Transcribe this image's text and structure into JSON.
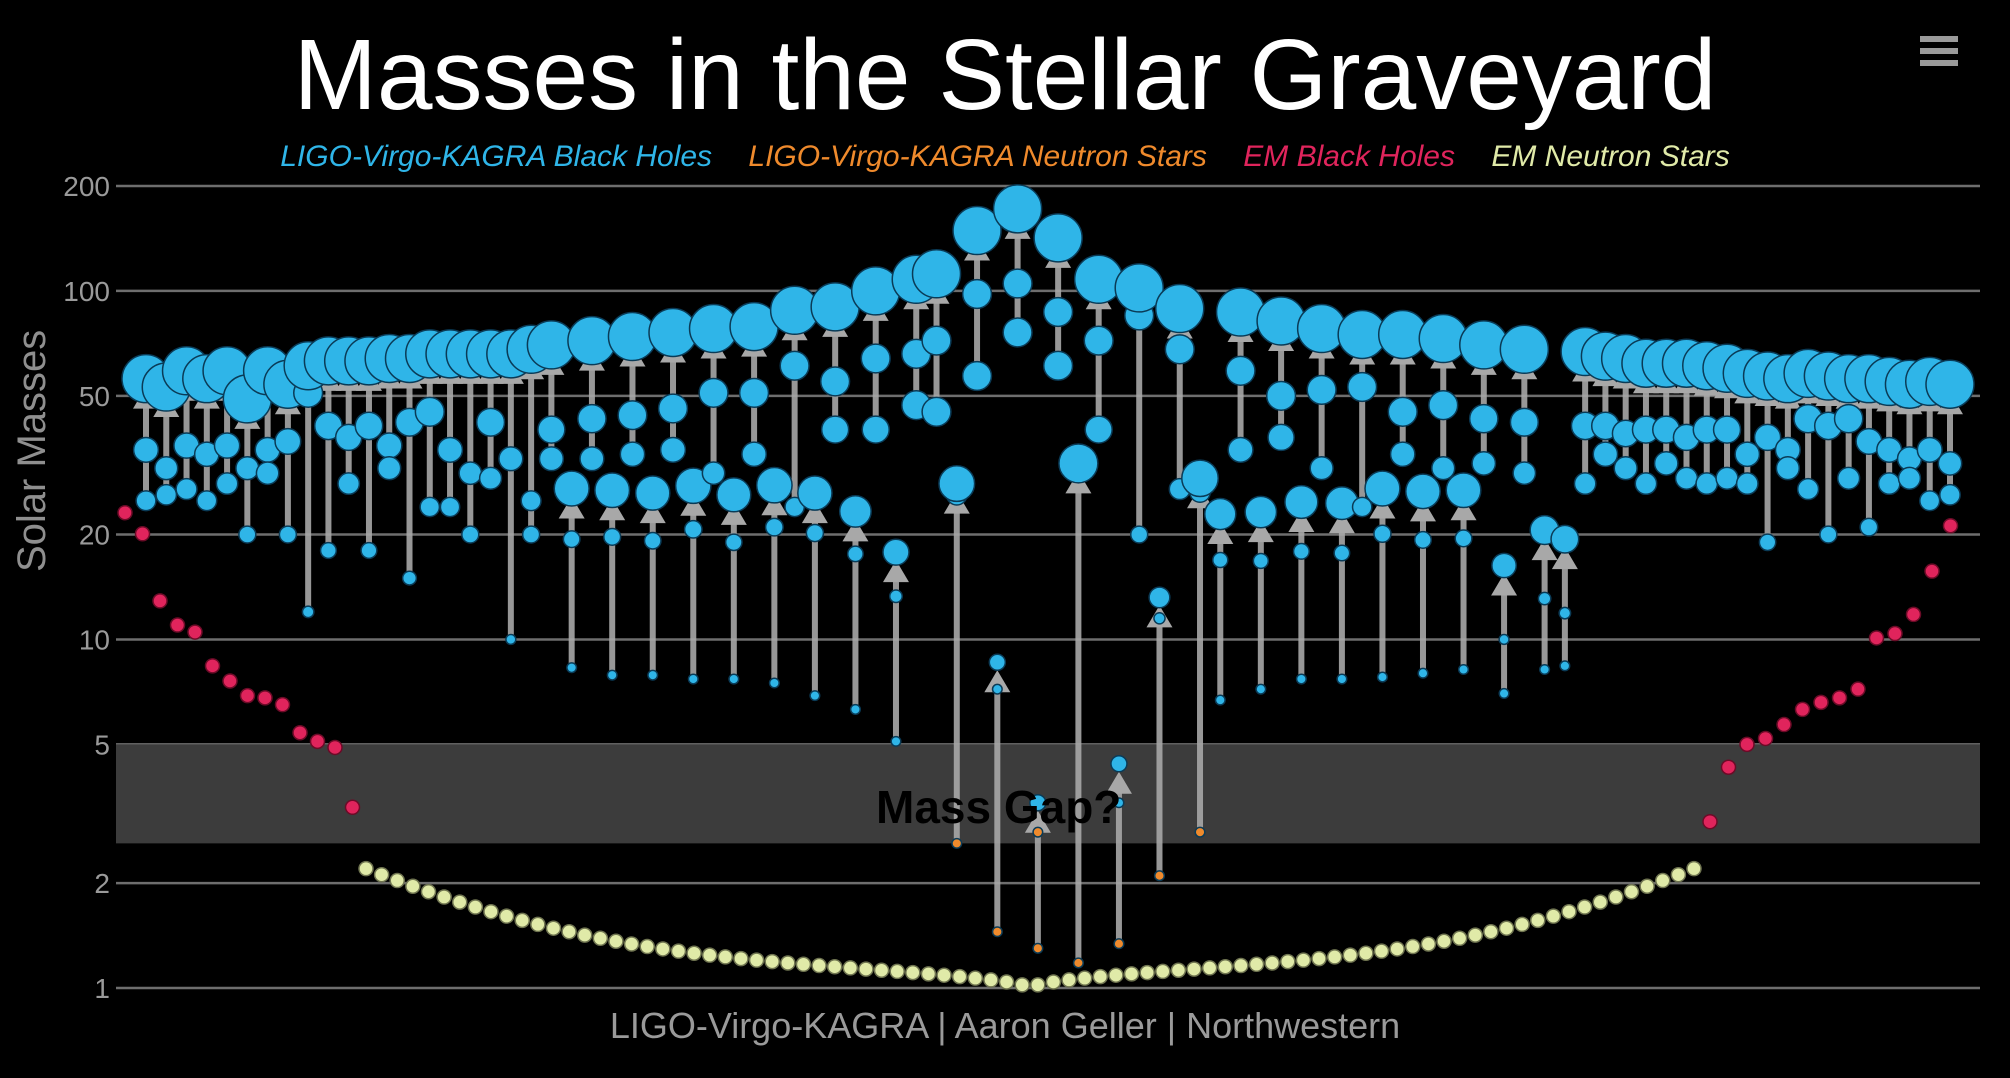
{
  "chart_data": {
    "type": "scatter",
    "title": "Masses in the Stellar Graveyard",
    "ylabel": "Solar Masses",
    "xlabel": "",
    "yscale": "log",
    "ylim": [
      0.9,
      230
    ],
    "yticks": [
      1,
      2,
      5,
      10,
      20,
      50,
      100,
      200
    ],
    "grid": true,
    "legend_position": "top-center",
    "series": [
      {
        "name": "LIGO-Virgo-KAGRA Black Holes",
        "color": "#2fb5e8"
      },
      {
        "name": "LIGO-Virgo-KAGRA Neutron Stars",
        "color": "#ef8a2c"
      },
      {
        "name": "EM Black Holes",
        "color": "#e0245c"
      },
      {
        "name": "EM Neutron Stars",
        "color": "#e0eaa8"
      }
    ],
    "annotation": "Mass Gap?",
    "mass_gap": [
      2.6,
      5
    ],
    "mergers_bh": [
      [
        35,
        25,
        56
      ],
      [
        31,
        26,
        53
      ],
      [
        36,
        27,
        59
      ],
      [
        34,
        25,
        56
      ],
      [
        36,
        28,
        59
      ],
      [
        31,
        20,
        49
      ],
      [
        35,
        30,
        59
      ],
      [
        37,
        20,
        54
      ],
      [
        51,
        12,
        61
      ],
      [
        41,
        18,
        63
      ],
      [
        38,
        28,
        63
      ],
      [
        41,
        18,
        63
      ],
      [
        36,
        31,
        64
      ],
      [
        42,
        15,
        64
      ],
      [
        45,
        24,
        66
      ],
      [
        35,
        24,
        66
      ],
      [
        30,
        20,
        66
      ],
      [
        42,
        29,
        66
      ],
      [
        33,
        10,
        66
      ],
      [
        25,
        20,
        68
      ],
      [
        40,
        33,
        70
      ],
      [
        43,
        33,
        72
      ],
      [
        44,
        34,
        74
      ],
      [
        46,
        35,
        76
      ],
      [
        51,
        30,
        78
      ],
      [
        51,
        34,
        79
      ],
      [
        61,
        24,
        88
      ],
      [
        55,
        40,
        90
      ],
      [
        64,
        40,
        100
      ],
      [
        66,
        47,
        108
      ],
      [
        72,
        45,
        112
      ],
      [
        98,
        57,
        149
      ],
      [
        105,
        76,
        172
      ],
      [
        87,
        61,
        142
      ],
      [
        72,
        40,
        108
      ],
      [
        85,
        20,
        102
      ],
      [
        68,
        27,
        89
      ],
      [
        59,
        35,
        87
      ],
      [
        50,
        38,
        82
      ],
      [
        52,
        31,
        78
      ],
      [
        53,
        24,
        75
      ],
      [
        45,
        34,
        75
      ],
      [
        47,
        31,
        73
      ],
      [
        43,
        32,
        70
      ],
      [
        42,
        30,
        68
      ],
      [
        41,
        28,
        67
      ],
      [
        41,
        34,
        65
      ],
      [
        39,
        31,
        64
      ],
      [
        40,
        28,
        62
      ],
      [
        40,
        32,
        62
      ],
      [
        38,
        29,
        62
      ],
      [
        40,
        28,
        61
      ],
      [
        40,
        29,
        60
      ],
      [
        34,
        28,
        58
      ],
      [
        38,
        19,
        57
      ],
      [
        35,
        31,
        56
      ],
      [
        43,
        27,
        58
      ],
      [
        41,
        20,
        57
      ],
      [
        43,
        29,
        56
      ],
      [
        37,
        21,
        56
      ],
      [
        35,
        28,
        55
      ],
      [
        33,
        29,
        54
      ],
      [
        35,
        25,
        55
      ],
      [
        32,
        26,
        54
      ]
    ],
    "mergers_light": [
      [
        19.4,
        8.3,
        27.1
      ],
      [
        19.7,
        7.9,
        26.8
      ],
      [
        19.2,
        7.9,
        26.3
      ],
      [
        20.7,
        7.7,
        27.6
      ],
      [
        19,
        7.7,
        26
      ],
      [
        21,
        7.5,
        27.7
      ],
      [
        20.2,
        6.9,
        26.3
      ],
      [
        17.6,
        6.3,
        23.3
      ],
      [
        13.3,
        5.1,
        17.8
      ],
      [
        16.9,
        6.7,
        22.9
      ],
      [
        16.8,
        7.2,
        23.2
      ],
      [
        17.9,
        7.7,
        24.8
      ],
      [
        17.7,
        7.7,
        24.6
      ],
      [
        20.1,
        7.8,
        27.1
      ],
      [
        19.3,
        8,
        26.6
      ],
      [
        19.5,
        8.2,
        26.8
      ],
      [
        10,
        7,
        16.3
      ],
      [
        13.1,
        8.2,
        20.6
      ],
      [
        11.9,
        8.4,
        19.4
      ]
    ],
    "mergers_special": [
      [
        26,
        2.6,
        28
      ],
      [
        7.2,
        1.45,
        8.6
      ],
      [
        2.8,
        1.3,
        3.4
      ],
      [
        31,
        1.18,
        32
      ],
      [
        3.4,
        1.34,
        4.4
      ],
      [
        11.5,
        2.1,
        13.2
      ],
      [
        26.5,
        2.8,
        29
      ]
    ],
    "em_black_holes": [
      23.1,
      20.1,
      12.9,
      11,
      10.5,
      8.4,
      7.6,
      6.9,
      6.8,
      6.5,
      5.4,
      5.1,
      4.9,
      3.3,
      3,
      4.3,
      5,
      5.2,
      5.7,
      6.3,
      6.6,
      6.8,
      7.2,
      10.1,
      10.4,
      11.8,
      15.7,
      21.2
    ],
    "em_neutron_stars_count": 86
  },
  "credit": "LIGO-Virgo-KAGRA | Aaron Geller | Northwestern",
  "menu_icon": "hamburger-icon"
}
